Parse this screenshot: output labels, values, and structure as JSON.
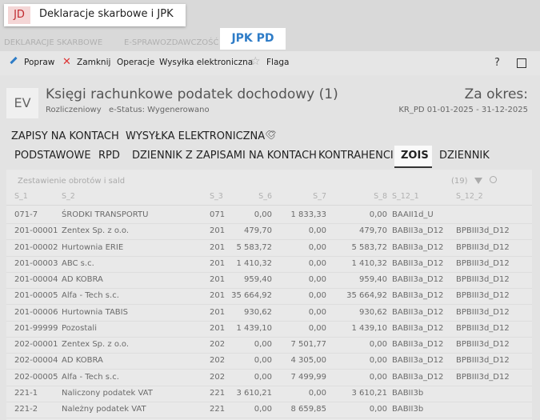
{
  "app": {
    "badge": "JD",
    "title": "Deklaracje skarbowe i JPK"
  },
  "module_tabs": [
    "DEKLARACJE SKARBOWE",
    "E-SPRAWOZDAWCZOŚĆ",
    "JPK PD"
  ],
  "toolbar": {
    "items": [
      "Popraw",
      "Zamknij",
      "Operacje",
      "Wysyłka elektroniczna",
      "Flaga"
    ],
    "help": "?"
  },
  "header": {
    "badge": "EV",
    "title": "Księgi rachunkowe podatek dochodowy (1)",
    "type": "Rozliczeniowy",
    "status": "e-Status: Wygenerowano",
    "period_label": "Za okres:",
    "period": "KR_PD 01-01-2025 - 31-12-2025"
  },
  "section_tabs": [
    "ZAPISY NA KONTACH",
    "WYSYŁKA ELEKTRONICZNA"
  ],
  "tabs": [
    "PODSTAWOWE",
    "RPD",
    "DZIENNIK Z ZAPISAMI NA KONTACH",
    "KONTRAHENCI",
    "ZOIS",
    "DZIENNIK"
  ],
  "active_tab": "ZOIS",
  "table": {
    "title": "Zestawienie obrotów i sald",
    "count": "(19)",
    "columns": [
      "S_1",
      "S_2",
      "S_3",
      "S_6",
      "S_7",
      "S_8",
      "S_12_1",
      "S_12_2"
    ],
    "rows": [
      [
        "071-7",
        "ŚRODKI TRANSPORTU",
        "071",
        "0,00",
        "1 833,33",
        "0,00",
        "BAAII1d_U"
      ],
      [
        "201-00001",
        "Zentex Sp. z o.o.",
        "201",
        "479,70",
        "0,00",
        "479,70",
        "BABII3a_D12",
        "BPBIII3d_D12"
      ],
      [
        "201-00002",
        "Hurtownia ERIE",
        "201",
        "5 583,72",
        "0,00",
        "5 583,72",
        "BABII3a_D12",
        "BPBIII3d_D12"
      ],
      [
        "201-00003",
        "ABC s.c.",
        "201",
        "1 410,32",
        "0,00",
        "1 410,32",
        "BABII3a_D12",
        "BPBIII3d_D12"
      ],
      [
        "201-00004",
        "AD KOBRA",
        "201",
        "959,40",
        "0,00",
        "959,40",
        "BABII3a_D12",
        "BPBIII3d_D12"
      ],
      [
        "201-00005",
        "Alfa - Tech s.c.",
        "201",
        "35 664,92",
        "0,00",
        "35 664,92",
        "BABII3a_D12",
        "BPBIII3d_D12"
      ],
      [
        "201-00006",
        "Hurtownia TABIS",
        "201",
        "930,62",
        "0,00",
        "930,62",
        "BABII3a_D12",
        "BPBIII3d_D12"
      ],
      [
        "201-99999",
        "Pozostali",
        "201",
        "1 439,10",
        "0,00",
        "1 439,10",
        "BABII3a_D12",
        "BPBIII3d_D12"
      ],
      [
        "202-00001",
        "Zentex Sp. z o.o.",
        "202",
        "0,00",
        "7 501,77",
        "0,00",
        "BABII3a_D12",
        "BPBIII3d_D12"
      ],
      [
        "202-00004",
        "AD KOBRA",
        "202",
        "0,00",
        "4 305,00",
        "0,00",
        "BABII3a_D12",
        "BPBIII3d_D12"
      ],
      [
        "202-00005",
        "Alfa - Tech s.c.",
        "202",
        "0,00",
        "7 499,99",
        "0,00",
        "BABII3a_D12",
        "BPBIII3d_D12"
      ],
      [
        "221-1",
        "Naliczony podatek VAT",
        "221",
        "3 610,21",
        "0,00",
        "3 610,21",
        "BABII3b"
      ],
      [
        "221-2",
        "Należny podatek VAT",
        "221",
        "0,00",
        "8 659,85",
        "0,00",
        "BABII3b"
      ]
    ]
  }
}
